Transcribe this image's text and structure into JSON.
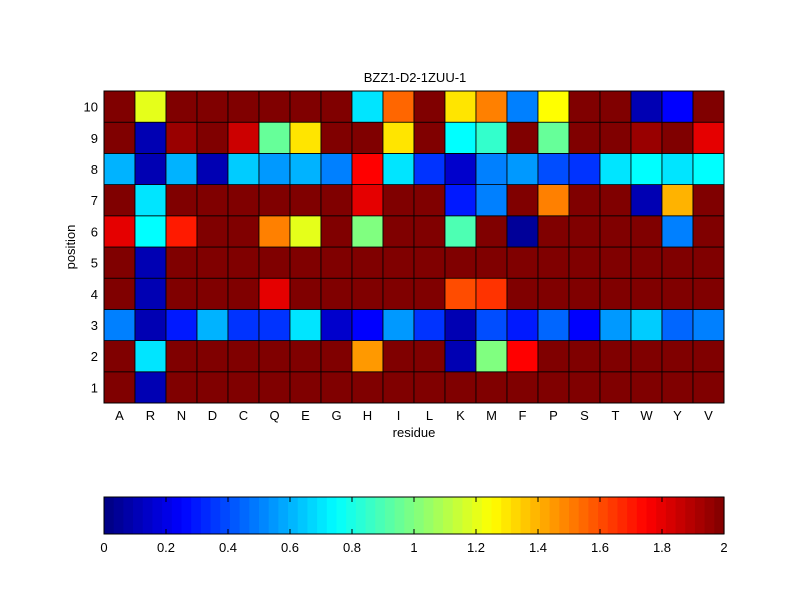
{
  "chart_data": {
    "type": "heatmap",
    "title": "BZZ1-D2-1ZUU-1",
    "xlabel": "residue",
    "ylabel": "position",
    "x_categories": [
      "A",
      "R",
      "N",
      "D",
      "C",
      "Q",
      "E",
      "G",
      "H",
      "I",
      "L",
      "K",
      "M",
      "F",
      "P",
      "S",
      "T",
      "W",
      "Y",
      "V"
    ],
    "y_categories": [
      "1",
      "2",
      "3",
      "4",
      "5",
      "6",
      "7",
      "8",
      "9",
      "10"
    ],
    "values": [
      [
        2,
        0.1,
        2,
        2,
        2,
        2,
        2,
        2,
        2,
        2,
        2,
        2,
        2,
        2,
        2,
        2,
        2,
        2,
        2,
        2
      ],
      [
        2,
        0.7,
        2,
        2,
        2,
        2,
        2,
        2,
        1.45,
        2,
        2,
        0.1,
        1.0,
        1.75,
        2,
        2,
        2,
        2,
        2,
        2
      ],
      [
        0.5,
        0.1,
        0.3,
        0.6,
        0.35,
        0.35,
        0.7,
        0.15,
        0.25,
        0.55,
        0.35,
        0.1,
        0.4,
        0.3,
        0.45,
        0.25,
        0.55,
        0.65,
        0.45,
        0.5
      ],
      [
        2,
        0.1,
        2,
        2,
        2,
        1.8,
        2,
        2,
        2,
        2,
        2,
        1.6,
        1.65,
        2,
        2,
        2,
        2,
        2,
        2,
        2
      ],
      [
        2,
        0.1,
        2,
        2,
        2,
        2,
        2,
        2,
        2,
        2,
        2,
        2,
        2,
        2,
        2,
        2,
        2,
        2,
        2,
        2
      ],
      [
        1.8,
        0.75,
        1.7,
        2,
        2,
        1.5,
        1.2,
        2,
        1.0,
        2,
        2,
        0.9,
        2,
        0.05,
        2,
        2,
        2,
        2,
        0.5,
        2
      ],
      [
        2,
        0.7,
        2,
        2,
        2,
        2,
        2,
        2,
        1.8,
        2,
        2,
        0.3,
        0.5,
        2,
        1.5,
        2,
        2,
        0.1,
        1.4,
        2
      ],
      [
        0.6,
        0.1,
        0.6,
        0.1,
        0.65,
        0.55,
        0.6,
        0.5,
        1.75,
        0.7,
        0.35,
        0.15,
        0.5,
        0.55,
        0.4,
        0.35,
        0.7,
        0.75,
        0.7,
        0.75
      ],
      [
        2,
        0.1,
        1.95,
        2,
        1.85,
        0.95,
        1.3,
        2,
        2,
        1.3,
        2,
        0.75,
        0.85,
        2,
        0.95,
        2,
        2,
        1.95,
        2,
        1.8
      ],
      [
        2,
        1.2,
        2,
        2,
        2,
        2,
        2,
        2,
        0.7,
        1.55,
        2,
        1.3,
        1.5,
        0.5,
        1.25,
        2,
        2,
        0.1,
        0.25,
        2
      ]
    ],
    "colorbar": {
      "min": 0,
      "max": 2,
      "ticks": [
        "0",
        "0.2",
        "0.4",
        "0.6",
        "0.8",
        "1",
        "1.2",
        "1.4",
        "1.6",
        "1.8",
        "2"
      ],
      "colormap": "jet"
    },
    "grid": "cell borders",
    "legend": "colorbar-bottom"
  }
}
